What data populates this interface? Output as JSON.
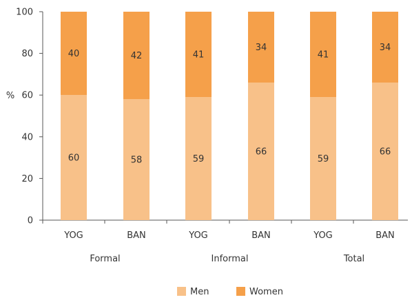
{
  "chart_data": {
    "type": "bar",
    "stacked": true,
    "ylabel": "%",
    "xlabel": "",
    "ylim": [
      0,
      100
    ],
    "yticks": [
      0,
      20,
      40,
      60,
      80,
      100
    ],
    "grid": false,
    "legend_position": "bottom",
    "categories": [
      "YOG",
      "BAN",
      "YOG",
      "BAN",
      "YOG",
      "BAN"
    ],
    "groups": [
      {
        "label": "Formal",
        "span": [
          0,
          1
        ]
      },
      {
        "label": "Informal",
        "span": [
          2,
          3
        ]
      },
      {
        "label": "Total",
        "span": [
          4,
          5
        ]
      }
    ],
    "series": [
      {
        "name": "Men",
        "color": "#f8c189",
        "values": [
          60,
          58,
          59,
          66,
          59,
          66
        ]
      },
      {
        "name": "Women",
        "color": "#f5a04a",
        "values": [
          40,
          42,
          41,
          34,
          41,
          34
        ]
      }
    ]
  }
}
